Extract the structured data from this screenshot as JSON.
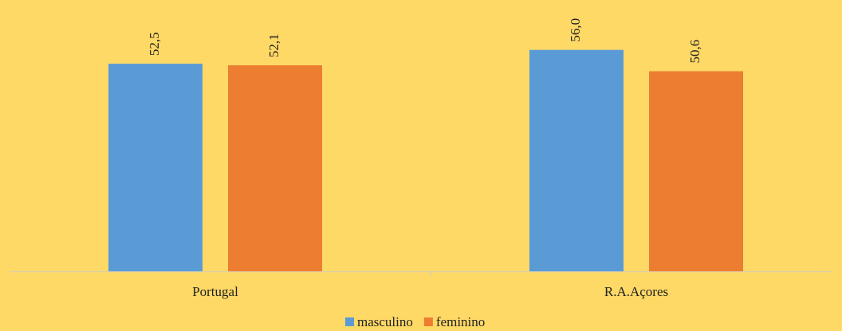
{
  "chart_data": {
    "type": "bar",
    "categories": [
      "Portugal",
      "R.A.Açores"
    ],
    "series": [
      {
        "name": "masculino",
        "color": "#5b9bd5",
        "values": [
          52.5,
          56.0
        ],
        "value_labels": [
          "52,5",
          "56,0"
        ]
      },
      {
        "name": "feminino",
        "color": "#ed7d31",
        "values": [
          52.1,
          50.6
        ],
        "value_labels": [
          "52,1",
          "50,6"
        ]
      }
    ],
    "background": "#ffd966"
  }
}
